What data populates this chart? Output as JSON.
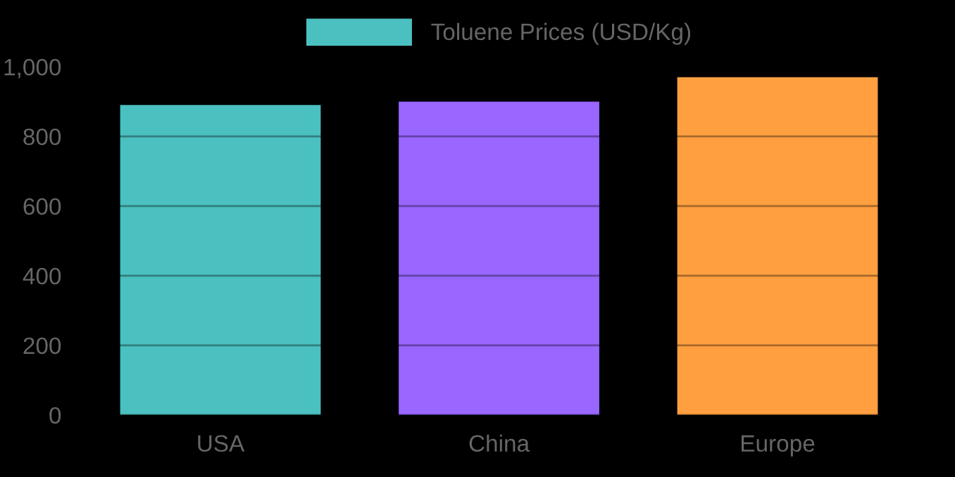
{
  "chart_data": {
    "type": "bar",
    "categories": [
      "USA",
      "China",
      "Europe"
    ],
    "series": [
      {
        "name": "Toluene Prices (USD/Kg)",
        "color": "#4bc0c0",
        "colors": [
          "#4bc0c0",
          "#9966ff",
          "#ff9f40"
        ],
        "values": [
          890,
          900,
          970
        ]
      }
    ],
    "ylim": [
      0,
      1000
    ],
    "yticks": [
      0,
      200,
      400,
      600,
      800,
      {
        "value": 1000,
        "label": "1,000"
      }
    ],
    "grid": "y",
    "legend": "top"
  }
}
